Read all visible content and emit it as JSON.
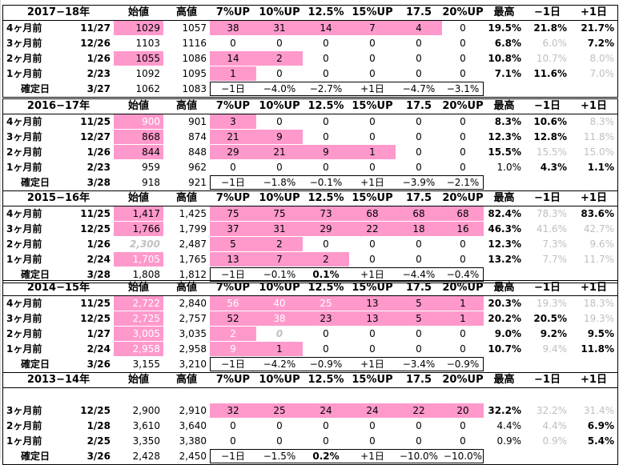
{
  "columns": [
    "",
    "始値",
    "高値",
    "7%UP",
    "10%UP",
    "12.5%",
    "15%UP",
    "17.5",
    "20%UP",
    "最高",
    "−1日",
    "+1日"
  ],
  "blocks": [
    {
      "year": "2017−18年",
      "rows": [
        {
          "label": "4ヶ月前",
          "date": "11/27",
          "cells": [
            "1029",
            "1057",
            "38",
            "31",
            "14",
            "7",
            "4",
            "0",
            "19.5%",
            "21.8%",
            "21.7%"
          ],
          "st": [
            "pk",
            "",
            "pk",
            "pk",
            "pk",
            "pk",
            "pk",
            "",
            "b",
            "b",
            "b"
          ]
        },
        {
          "label": "3ヶ月前",
          "date": "12/26",
          "cells": [
            "1103",
            "1116",
            "0",
            "0",
            "0",
            "0",
            "0",
            "0",
            "6.8%",
            "6.0%",
            "7.2%"
          ],
          "st": [
            "",
            "",
            "",
            "",
            "",
            "",
            "",
            "",
            "b",
            "gry",
            "b"
          ]
        },
        {
          "label": "2ヶ月前",
          "date": "1/26",
          "cells": [
            "1055",
            "1086",
            "14",
            "2",
            "0",
            "0",
            "0",
            "0",
            "10.8%",
            "10.7%",
            "8.0%"
          ],
          "st": [
            "pk",
            "",
            "pk",
            "pk",
            "",
            "",
            "",
            "",
            "b",
            "gry",
            "gry"
          ]
        },
        {
          "label": "1ヶ月前",
          "date": "2/23",
          "cells": [
            "1092",
            "1095",
            "1",
            "0",
            "0",
            "0",
            "0",
            "0",
            "7.1%",
            "11.6%",
            "7.0%"
          ],
          "st": [
            "",
            "",
            "pk",
            "",
            "",
            "",
            "",
            "",
            "b",
            "b",
            "gry"
          ]
        },
        {
          "label": "確定日",
          "date": "3/27",
          "cells": [
            "1062",
            "1083",
            "−1日",
            "−4.0%",
            "−2.7%",
            "+1日",
            "−4.7%",
            "−3.1%",
            "",
            "",
            ""
          ],
          "st": [
            "",
            "",
            "",
            "",
            "",
            "",
            "",
            "",
            "",
            "",
            ""
          ],
          "conf": true
        }
      ]
    },
    {
      "year": "2016−17年",
      "rows": [
        {
          "label": "4ヶ月前",
          "date": "11/25",
          "cells": [
            "900",
            "901",
            "3",
            "0",
            "0",
            "0",
            "0",
            "0",
            "8.3%",
            "10.6%",
            "8.3%"
          ],
          "st": [
            "pk wht",
            "",
            "pk",
            "",
            "",
            "",
            "",
            "",
            "b",
            "b",
            "gry"
          ]
        },
        {
          "label": "3ヶ月前",
          "date": "12/27",
          "cells": [
            "868",
            "874",
            "21",
            "9",
            "0",
            "0",
            "0",
            "0",
            "12.3%",
            "12.8%",
            "11.8%"
          ],
          "st": [
            "pk",
            "",
            "pk",
            "pk",
            "",
            "",
            "",
            "",
            "b",
            "b",
            "gry"
          ]
        },
        {
          "label": "2ヶ月前",
          "date": "1/26",
          "cells": [
            "844",
            "848",
            "29",
            "21",
            "9",
            "1",
            "0",
            "0",
            "15.5%",
            "15.5%",
            "15.0%"
          ],
          "st": [
            "pk",
            "",
            "pk",
            "pk",
            "pk",
            "pk",
            "",
            "",
            "b",
            "gry",
            "gry"
          ]
        },
        {
          "label": "1ヶ月前",
          "date": "2/23",
          "cells": [
            "959",
            "962",
            "0",
            "0",
            "0",
            "0",
            "0",
            "0",
            "1.0%",
            "4.3%",
            "1.1%"
          ],
          "st": [
            "",
            "",
            "",
            "",
            "",
            "",
            "",
            "",
            "",
            "b",
            "b"
          ]
        },
        {
          "label": "確定日",
          "date": "3/28",
          "cells": [
            "918",
            "921",
            "−1日",
            "−1.8%",
            "−0.1%",
            "+1日",
            "−3.9%",
            "−2.1%",
            "",
            "",
            ""
          ],
          "st": [
            "",
            "",
            "",
            "",
            "",
            "",
            "",
            "",
            "",
            "",
            ""
          ],
          "conf": true
        }
      ]
    },
    {
      "year": "2015−16年",
      "rows": [
        {
          "label": "4ヶ月前",
          "date": "11/25",
          "cells": [
            "1,417",
            "1,425",
            "75",
            "75",
            "73",
            "68",
            "68",
            "68",
            "82.4%",
            "78.3%",
            "83.6%"
          ],
          "st": [
            "pk",
            "",
            "pk",
            "pk",
            "pk",
            "pk",
            "pk",
            "pk",
            "b",
            "gry",
            "b"
          ]
        },
        {
          "label": "3ヶ月前",
          "date": "12/25",
          "cells": [
            "1,766",
            "1,799",
            "37",
            "31",
            "29",
            "22",
            "18",
            "16",
            "46.3%",
            "41.6%",
            "42.7%"
          ],
          "st": [
            "pk",
            "",
            "pk",
            "pk",
            "pk",
            "pk",
            "pk",
            "pk",
            "b",
            "gry",
            "gry"
          ]
        },
        {
          "label": "2ヶ月前",
          "date": "1/26",
          "cells": [
            "2,300",
            "2,487",
            "5",
            "2",
            "0",
            "0",
            "0",
            "0",
            "12.3%",
            "7.3%",
            "9.6%"
          ],
          "st": [
            "gi",
            "",
            "pk",
            "pk",
            "",
            "",
            "",
            "",
            "b",
            "gry",
            "gry"
          ]
        },
        {
          "label": "1ヶ月前",
          "date": "2/24",
          "cells": [
            "1,705",
            "1,765",
            "13",
            "7",
            "2",
            "0",
            "0",
            "0",
            "13.2%",
            "7.7%",
            "11.7%"
          ],
          "st": [
            "pk wht",
            "",
            "pk",
            "pk",
            "pk",
            "",
            "",
            "",
            "b",
            "gry",
            "gry"
          ]
        },
        {
          "label": "確定日",
          "date": "3/28",
          "cells": [
            "1,808",
            "1,812",
            "−1日",
            "−0.1%",
            "0.1%",
            "+1日",
            "−4.4%",
            "−0.4%",
            "",
            "",
            ""
          ],
          "st": [
            "",
            "",
            "",
            "",
            "b",
            "",
            "",
            "",
            "",
            "",
            ""
          ],
          "conf": true
        }
      ]
    },
    {
      "year": "2014−15年",
      "rows": [
        {
          "label": "4ヶ月前",
          "date": "11/25",
          "cells": [
            "2,722",
            "2,840",
            "56",
            "40",
            "25",
            "13",
            "5",
            "1",
            "20.3%",
            "19.3%",
            "18.3%"
          ],
          "st": [
            "pk wht",
            "",
            "pk wht",
            "pk wht",
            "pk wht",
            "pk",
            "pk",
            "pk",
            "b",
            "gry",
            "gry"
          ]
        },
        {
          "label": "3ヶ月前",
          "date": "12/25",
          "cells": [
            "2,725",
            "2,757",
            "52",
            "38",
            "23",
            "13",
            "5",
            "1",
            "20.2%",
            "20.5%",
            "19.3%"
          ],
          "st": [
            "pk wht",
            "",
            "pk",
            "pk wht",
            "pk",
            "pk",
            "pk",
            "pk",
            "b",
            "b",
            "gry"
          ]
        },
        {
          "label": "2ヶ月前",
          "date": "1/27",
          "cells": [
            "3,005",
            "3,035",
            "2",
            "0",
            "0",
            "0",
            "0",
            "0",
            "9.0%",
            "9.2%",
            "9.5%"
          ],
          "st": [
            "pk wht",
            "",
            "pk wht",
            "gi",
            "",
            "",
            "",
            "",
            "b",
            "b",
            "b"
          ]
        },
        {
          "label": "1ヶ月前",
          "date": "2/24",
          "cells": [
            "2,958",
            "2,958",
            "9",
            "1",
            "0",
            "0",
            "0",
            "0",
            "10.7%",
            "9.4%",
            "11.8%"
          ],
          "st": [
            "pk wht",
            "",
            "pk wht",
            "pk",
            "",
            "",
            "",
            "",
            "b",
            "gry",
            "b"
          ]
        },
        {
          "label": "確定日",
          "date": "3/26",
          "cells": [
            "3,155",
            "3,210",
            "−1日",
            "−4.2%",
            "−0.9%",
            "+1日",
            "−3.4%",
            "−0.9%",
            "",
            "",
            ""
          ],
          "st": [
            "",
            "",
            "",
            "",
            "",
            "",
            "",
            "",
            "",
            "",
            ""
          ],
          "conf": true
        }
      ]
    },
    {
      "year": "2013−14年",
      "rows": [
        {
          "label": "",
          "date": "",
          "cells": [
            "",
            "",
            "",
            "",
            "",
            "",
            "",
            "",
            "",
            "",
            ""
          ],
          "st": [
            "",
            "",
            "",
            "",
            "",
            "",
            "",
            "",
            "",
            "",
            ""
          ]
        },
        {
          "label": "3ヶ月前",
          "date": "12/25",
          "cells": [
            "2,900",
            "2,910",
            "32",
            "25",
            "24",
            "24",
            "22",
            "20",
            "32.2%",
            "32.2%",
            "31.4%"
          ],
          "st": [
            "",
            "",
            "pk",
            "pk",
            "pk",
            "pk",
            "pk",
            "pk",
            "b",
            "gry",
            "gry"
          ]
        },
        {
          "label": "2ヶ月前",
          "date": "1/28",
          "cells": [
            "3,610",
            "3,640",
            "0",
            "0",
            "0",
            "0",
            "0",
            "0",
            "4.4%",
            "4.4%",
            "6.9%"
          ],
          "st": [
            "",
            "",
            "",
            "",
            "",
            "",
            "",
            "",
            "",
            "gry",
            "b"
          ]
        },
        {
          "label": "1ヶ月前",
          "date": "2/25",
          "cells": [
            "3,350",
            "3,380",
            "0",
            "0",
            "0",
            "0",
            "0",
            "0",
            "0.9%",
            "0.9%",
            "5.4%"
          ],
          "st": [
            "",
            "",
            "",
            "",
            "",
            "",
            "",
            "",
            "",
            "gry",
            "b"
          ]
        },
        {
          "label": "確定日",
          "date": "3/26",
          "cells": [
            "2,428",
            "2,450",
            "−1日",
            "−1.5%",
            "0.2%",
            "+1日",
            "−10.0%",
            "−10.0%",
            "",
            "",
            ""
          ],
          "st": [
            "",
            "",
            "",
            "",
            "b",
            "",
            "",
            "",
            "",
            "",
            ""
          ],
          "conf": true
        }
      ]
    }
  ]
}
